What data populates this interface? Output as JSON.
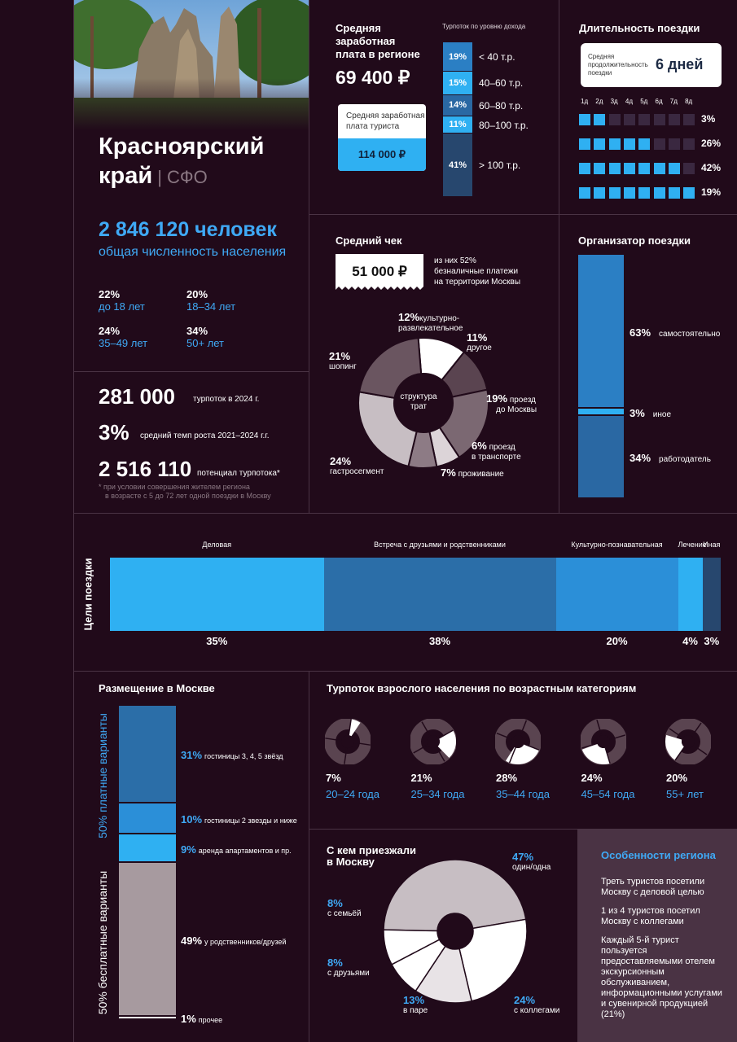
{
  "region": {
    "name_line1": "Красноярский",
    "name_line2": "край",
    "district": "| СФО",
    "population": "2 846 120 человек",
    "population_label": "общая численность населения",
    "age_groups": [
      {
        "pct": "22%",
        "label": "до 18 лет"
      },
      {
        "pct": "20%",
        "label": "18–34 лет"
      },
      {
        "pct": "24%",
        "label": "35–49 лет"
      },
      {
        "pct": "34%",
        "label": "50+ лет"
      }
    ]
  },
  "flow": {
    "turnover_value": "281 000",
    "turnover_label": "турпоток в 2024 г.",
    "growth_value": "3%",
    "growth_label": "средний темп роста 2021–2024 г.г.",
    "potential_value": "2 516 110",
    "potential_label": "потенциал турпотока*",
    "footnote_line1": "* при условии совершения жителем региона",
    "footnote_line2": "в возрасте с 5 до 72 лет одной поездки в Москву"
  },
  "salary": {
    "title_line1": "Средняя",
    "title_line2": "заработная",
    "title_line3": "плата в регионе",
    "value": "69 400 ₽",
    "tourist_label_line1": "Средняя заработная",
    "tourist_label_line2": "плата туриста",
    "tourist_value": "114 000 ₽",
    "income_title": "Турпоток по уровню дохода",
    "income_levels": [
      {
        "pct": "19%",
        "label": "< 40 т.р.",
        "value": 19,
        "color": "#2b7fc4"
      },
      {
        "pct": "15%",
        "label": "40–60 т.р.",
        "value": 15,
        "color": "#2fb0f2"
      },
      {
        "pct": "14%",
        "label": "60–80 т.р.",
        "value": 14,
        "color": "#2a68a3"
      },
      {
        "pct": "11%",
        "label": "80–100 т.р.",
        "value": 11,
        "color": "#2fb0f2"
      },
      {
        "pct": "41%",
        "label": "> 100 т.р.",
        "value": 41,
        "color": "#27476e"
      }
    ]
  },
  "duration": {
    "title": "Длительность поездки",
    "avg_label_line1": "Средняя",
    "avg_label_line2": "продолжительность",
    "avg_label_line3": "поездки",
    "avg_value": "6 дней",
    "days": [
      "1д",
      "2д",
      "3д",
      "4д",
      "5д",
      "6д",
      "7д",
      "8д"
    ],
    "rows": [
      {
        "days": 2,
        "pct": "3%"
      },
      {
        "days": 5,
        "pct": "26%"
      },
      {
        "days": 7,
        "pct": "42%"
      },
      {
        "days": 8,
        "pct": "19%"
      }
    ]
  },
  "check": {
    "title": "Средний чек",
    "value": "51 000 ₽",
    "note_line1": "из них 52%",
    "note_line2": "безналичные платежи",
    "note_line3": "на территории Москвы",
    "center_line1": "структура",
    "center_line2": "трат",
    "segments": [
      {
        "pct": "12%",
        "label_line1": "культурно-",
        "label_line2": "развлекательное",
        "value": 12,
        "color": "#ffffff"
      },
      {
        "pct": "11%",
        "label_line1": "другое",
        "label_line2": "",
        "value": 11,
        "color": "#5a4450"
      },
      {
        "pct": "19%",
        "label_line1": "проезд",
        "label_line2": "до Москвы",
        "value": 19,
        "color": "#7b6872"
      },
      {
        "pct": "6%",
        "label_line1": "проезд",
        "label_line2": "в транспорте",
        "value": 6,
        "color": "#dcd4d8"
      },
      {
        "pct": "7%",
        "label_line1": "проживание",
        "label_line2": "",
        "value": 7,
        "color": "#8d7b85"
      },
      {
        "pct": "24%",
        "label_line1": "гастросегмент",
        "label_line2": "",
        "value": 24,
        "color": "#c7bec3"
      },
      {
        "pct": "21%",
        "label_line1": "шопинг",
        "label_line2": "",
        "value": 21,
        "color": "#6a5560"
      }
    ]
  },
  "organizer": {
    "title": "Организатор поездки",
    "segments": [
      {
        "pct": "63%",
        "label": "самостоятельно",
        "value": 63,
        "color": "#2b7fc4"
      },
      {
        "pct": "3%",
        "label": "иное",
        "value": 3,
        "color": "#2fb0f2"
      },
      {
        "pct": "34%",
        "label": "работодатель",
        "value": 34,
        "color": "#2a68a3"
      }
    ]
  },
  "goals": {
    "title": "Цели поездки",
    "segments": [
      {
        "name": "Деловая",
        "pct": "35%",
        "value": 35,
        "color": "#2fb0f2"
      },
      {
        "name": "Встреча с друзьями и родственниками",
        "pct": "38%",
        "value": 38,
        "color": "#2b6ea8"
      },
      {
        "name": "Культурно-познавательная",
        "pct": "20%",
        "value": 20,
        "color": "#2b8fd8"
      },
      {
        "name": "Лечение",
        "pct": "4%",
        "value": 4,
        "color": "#2fb0f2"
      },
      {
        "name": "Иная",
        "pct": "3%",
        "value": 3,
        "color": "#27476e"
      }
    ]
  },
  "lodging": {
    "title": "Размещение в Москве",
    "paid_label": "50%  платные варианты",
    "free_label": "50%  бесплатные варианты",
    "segments": [
      {
        "pct": "31%",
        "label": "гостиницы 3, 4, 5 звёзд",
        "value": 31,
        "color": "#2b6ea8"
      },
      {
        "pct": "10%",
        "label": "гостиницы 2 звезды и ниже",
        "value": 10,
        "color": "#2b8fd8"
      },
      {
        "pct": "9%",
        "label": "аренда апартаментов и пр.",
        "value": 9,
        "color": "#2fb0f2"
      },
      {
        "pct": "49%",
        "label": "у родственников/друзей",
        "value": 49,
        "color": "#a79a9f"
      },
      {
        "pct": "1%",
        "label": "прочее",
        "value": 1,
        "color": "#ffffff"
      }
    ]
  },
  "age_flow": {
    "title": "Турпоток взрослого населения по возрастным категориям",
    "groups": [
      {
        "pct": "7%",
        "label": "20–24 года",
        "value": 7
      },
      {
        "pct": "21%",
        "label": "25–34 года",
        "value": 21
      },
      {
        "pct": "28%",
        "label": "35–44 года",
        "value": 28
      },
      {
        "pct": "24%",
        "label": "45–54 года",
        "value": 24
      },
      {
        "pct": "20%",
        "label": "55+ лет",
        "value": 20
      }
    ]
  },
  "companions": {
    "title_line1": "С кем приезжали",
    "title_line2": "в Москву",
    "segments": [
      {
        "pct": "47%",
        "label": "один/одна",
        "value": 47,
        "color": "#c7bec3"
      },
      {
        "pct": "24%",
        "label": "с коллегами",
        "value": 24,
        "color": "#ffffff"
      },
      {
        "pct": "13%",
        "label": "в паре",
        "value": 13,
        "color": "#e8e3e6"
      },
      {
        "pct": "8%",
        "label": "с друзьями",
        "value": 8,
        "color": "#ffffff"
      },
      {
        "pct": "8%",
        "label": "с семьёй",
        "value": 8,
        "color": "#ffffff"
      }
    ]
  },
  "features": {
    "title": "Особенности региона",
    "items": [
      "Треть туристов посетили Москву с деловой целью",
      "1 из 4 туристов посетил Москву с коллегами",
      "Каждый 5-й турист пользуется предоставляемыми отелем экскурсионным обслуживанием, информационными услугами и сувенирной продукцией (21%)"
    ]
  },
  "colors": {
    "background": "#210a1a",
    "accent": "#3fa9f5",
    "dark_blue": "#27476e",
    "grey": "#a79a9f"
  }
}
